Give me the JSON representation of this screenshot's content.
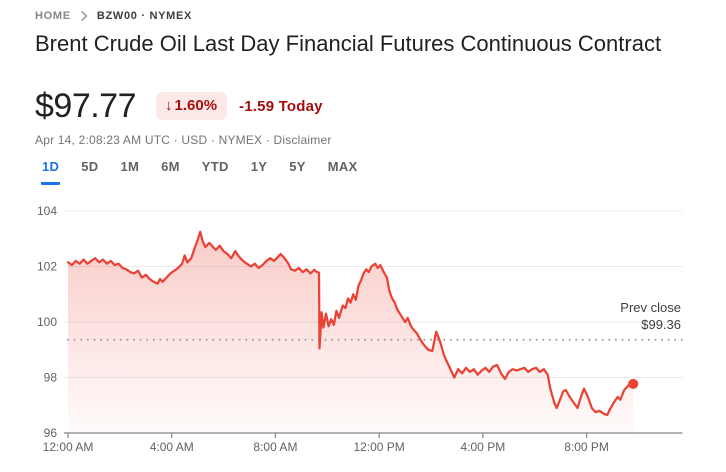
{
  "breadcrumb": {
    "home": "HOME",
    "symbol": "BZW00 · NYMEX"
  },
  "header": {
    "title": "Brent Crude Oil Last Day Financial Futures Continuous Contract"
  },
  "quote": {
    "price": "$97.77",
    "change_arrow": "↓",
    "change_percent": "1.60%",
    "change_amount": "-1.59 Today",
    "meta_prefix": "Apr 14, 2:08:23 AM UTC · USD · NYMEX · ",
    "disclaimer_label": "Disclaimer"
  },
  "tabs": {
    "items": [
      {
        "label": "1D",
        "active": true
      },
      {
        "label": "5D",
        "active": false
      },
      {
        "label": "1M",
        "active": false
      },
      {
        "label": "6M",
        "active": false
      },
      {
        "label": "YTD",
        "active": false
      },
      {
        "label": "1Y",
        "active": false
      },
      {
        "label": "5Y",
        "active": false
      },
      {
        "label": "MAX",
        "active": false
      }
    ]
  },
  "colors": {
    "accent_blue": "#1a73e8",
    "line_red": "#ea4335",
    "badge_bg": "#fce8e6",
    "negative_red": "#a50e0e",
    "axis_text": "#5f6368",
    "baseline_gray": "#80868b",
    "gridline_gray": "#e9ebef",
    "dotted_gray": "#9aa0a6",
    "prev_close_text": "#3c4043"
  },
  "chart_data": {
    "type": "area",
    "title": "Brent Crude Oil Last Day Financial Futures intraday price",
    "xlabel": "",
    "ylabel": "",
    "x_axis": {
      "unit": "hours_since_midnight",
      "range": [
        0,
        23.7
      ],
      "ticks": [
        {
          "t": 0,
          "label": "12:00 AM"
        },
        {
          "t": 4,
          "label": "4:00 AM"
        },
        {
          "t": 8,
          "label": "8:00 AM"
        },
        {
          "t": 12,
          "label": "12:00 PM"
        },
        {
          "t": 16,
          "label": "4:00 PM"
        },
        {
          "t": 20,
          "label": "8:00 PM"
        }
      ]
    },
    "y_axis": {
      "range": [
        96,
        104
      ],
      "ticks": [
        104,
        102,
        100,
        98,
        96
      ]
    },
    "prev_close": {
      "label": "Prev close",
      "value_label": "$99.36",
      "value": 99.36
    },
    "grid": true,
    "legend": false,
    "end_marker": true,
    "last_price": 97.77,
    "series": [
      {
        "name": "price",
        "points": [
          [
            0,
            102.15
          ],
          [
            0.15,
            102.05
          ],
          [
            0.3,
            102.2
          ],
          [
            0.45,
            102.1
          ],
          [
            0.6,
            102.25
          ],
          [
            0.75,
            102.1
          ],
          [
            0.9,
            102.2
          ],
          [
            1.05,
            102.3
          ],
          [
            1.2,
            102.15
          ],
          [
            1.35,
            102.25
          ],
          [
            1.5,
            102.1
          ],
          [
            1.65,
            102.2
          ],
          [
            1.8,
            102.05
          ],
          [
            1.95,
            102.1
          ],
          [
            2.1,
            101.95
          ],
          [
            2.25,
            101.9
          ],
          [
            2.4,
            101.8
          ],
          [
            2.55,
            101.75
          ],
          [
            2.7,
            101.85
          ],
          [
            2.85,
            101.6
          ],
          [
            3.0,
            101.7
          ],
          [
            3.15,
            101.55
          ],
          [
            3.3,
            101.45
          ],
          [
            3.45,
            101.38
          ],
          [
            3.55,
            101.55
          ],
          [
            3.65,
            101.45
          ],
          [
            3.8,
            101.6
          ],
          [
            3.95,
            101.75
          ],
          [
            4.1,
            101.85
          ],
          [
            4.25,
            101.95
          ],
          [
            4.4,
            102.1
          ],
          [
            4.5,
            102.4
          ],
          [
            4.6,
            102.15
          ],
          [
            4.75,
            102.3
          ],
          [
            4.9,
            102.7
          ],
          [
            5.0,
            102.95
          ],
          [
            5.1,
            103.25
          ],
          [
            5.2,
            102.9
          ],
          [
            5.3,
            102.7
          ],
          [
            5.45,
            102.85
          ],
          [
            5.6,
            102.7
          ],
          [
            5.7,
            102.6
          ],
          [
            5.85,
            102.75
          ],
          [
            6.0,
            102.55
          ],
          [
            6.15,
            102.45
          ],
          [
            6.3,
            102.3
          ],
          [
            6.45,
            102.55
          ],
          [
            6.6,
            102.35
          ],
          [
            6.75,
            102.2
          ],
          [
            6.9,
            102.1
          ],
          [
            7.05,
            102.0
          ],
          [
            7.2,
            102.1
          ],
          [
            7.35,
            101.95
          ],
          [
            7.5,
            102.05
          ],
          [
            7.65,
            102.2
          ],
          [
            7.8,
            102.3
          ],
          [
            7.95,
            102.2
          ],
          [
            8.1,
            102.35
          ],
          [
            8.2,
            102.45
          ],
          [
            8.35,
            102.3
          ],
          [
            8.5,
            102.1
          ],
          [
            8.6,
            101.9
          ],
          [
            8.75,
            101.85
          ],
          [
            8.9,
            101.95
          ],
          [
            9.05,
            101.8
          ],
          [
            9.2,
            101.9
          ],
          [
            9.35,
            101.75
          ],
          [
            9.5,
            101.88
          ],
          [
            9.6,
            101.8
          ],
          [
            9.68,
            101.78
          ],
          [
            9.7,
            99.05
          ],
          [
            9.78,
            100.35
          ],
          [
            9.85,
            99.8
          ],
          [
            9.95,
            100.3
          ],
          [
            10.05,
            99.85
          ],
          [
            10.15,
            100.1
          ],
          [
            10.25,
            99.9
          ],
          [
            10.35,
            100.4
          ],
          [
            10.45,
            100.15
          ],
          [
            10.6,
            100.6
          ],
          [
            10.7,
            100.5
          ],
          [
            10.8,
            100.85
          ],
          [
            10.9,
            100.7
          ],
          [
            11.0,
            101.0
          ],
          [
            11.1,
            100.8
          ],
          [
            11.2,
            101.3
          ],
          [
            11.3,
            101.5
          ],
          [
            11.4,
            101.75
          ],
          [
            11.5,
            101.9
          ],
          [
            11.6,
            101.8
          ],
          [
            11.7,
            102.0
          ],
          [
            11.85,
            102.1
          ],
          [
            11.95,
            101.95
          ],
          [
            12.05,
            102.05
          ],
          [
            12.15,
            101.85
          ],
          [
            12.3,
            101.6
          ],
          [
            12.4,
            101.1
          ],
          [
            12.5,
            100.85
          ],
          [
            12.6,
            100.7
          ],
          [
            12.7,
            100.45
          ],
          [
            12.8,
            100.3
          ],
          [
            12.9,
            100.15
          ],
          [
            13.0,
            100.0
          ],
          [
            13.1,
            100.15
          ],
          [
            13.2,
            99.9
          ],
          [
            13.3,
            99.75
          ],
          [
            13.45,
            99.6
          ],
          [
            13.6,
            99.35
          ],
          [
            13.75,
            99.15
          ],
          [
            13.9,
            99.0
          ],
          [
            14.05,
            98.95
          ],
          [
            14.2,
            99.65
          ],
          [
            14.35,
            99.3
          ],
          [
            14.5,
            98.8
          ],
          [
            14.65,
            98.5
          ],
          [
            14.8,
            98.2
          ],
          [
            14.9,
            98.0
          ],
          [
            15.05,
            98.3
          ],
          [
            15.2,
            98.15
          ],
          [
            15.35,
            98.35
          ],
          [
            15.5,
            98.2
          ],
          [
            15.65,
            98.3
          ],
          [
            15.8,
            98.1
          ],
          [
            15.95,
            98.25
          ],
          [
            16.1,
            98.35
          ],
          [
            16.25,
            98.2
          ],
          [
            16.4,
            98.4
          ],
          [
            16.55,
            98.45
          ],
          [
            16.7,
            98.15
          ],
          [
            16.85,
            97.95
          ],
          [
            17.0,
            98.2
          ],
          [
            17.15,
            98.3
          ],
          [
            17.3,
            98.25
          ],
          [
            17.45,
            98.3
          ],
          [
            17.6,
            98.35
          ],
          [
            17.75,
            98.2
          ],
          [
            17.9,
            98.3
          ],
          [
            18.05,
            98.35
          ],
          [
            18.2,
            98.2
          ],
          [
            18.35,
            98.3
          ],
          [
            18.5,
            98.1
          ],
          [
            18.6,
            97.6
          ],
          [
            18.75,
            97.1
          ],
          [
            18.85,
            96.9
          ],
          [
            19.0,
            97.25
          ],
          [
            19.1,
            97.5
          ],
          [
            19.2,
            97.55
          ],
          [
            19.35,
            97.3
          ],
          [
            19.5,
            97.1
          ],
          [
            19.65,
            96.9
          ],
          [
            19.8,
            97.35
          ],
          [
            19.9,
            97.6
          ],
          [
            20.05,
            97.3
          ],
          [
            20.2,
            96.9
          ],
          [
            20.35,
            96.75
          ],
          [
            20.5,
            96.8
          ],
          [
            20.65,
            96.7
          ],
          [
            20.8,
            96.65
          ],
          [
            20.9,
            96.85
          ],
          [
            21.05,
            97.1
          ],
          [
            21.2,
            97.3
          ],
          [
            21.3,
            97.2
          ],
          [
            21.45,
            97.55
          ],
          [
            21.6,
            97.7
          ],
          [
            21.7,
            97.8
          ],
          [
            21.8,
            97.77
          ]
        ]
      }
    ]
  }
}
